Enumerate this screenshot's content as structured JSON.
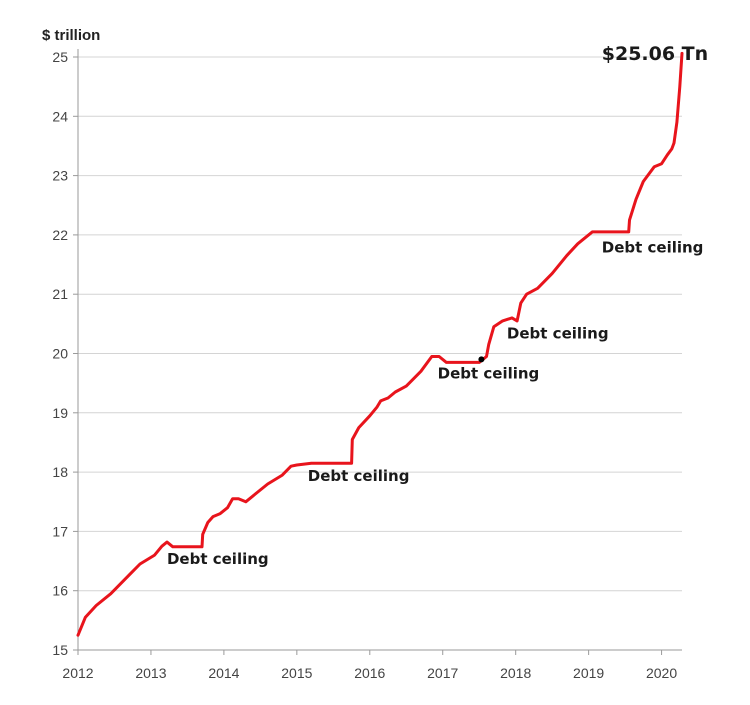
{
  "chart_data": {
    "type": "line",
    "title": "",
    "ylabel": "$ trillion",
    "xlabel": "",
    "xlim": [
      2012.0,
      2020.28
    ],
    "ylim": [
      15,
      25
    ],
    "yticks": [
      15,
      16,
      17,
      18,
      19,
      20,
      21,
      22,
      23,
      24,
      25
    ],
    "xticks": [
      2012,
      2013,
      2014,
      2015,
      2016,
      2017,
      2018,
      2019,
      2020
    ],
    "grid": "horizontal",
    "line_color": "#e8141c",
    "series": [
      {
        "x": [
          2012.0,
          2012.1,
          2012.25,
          2012.45,
          2012.65,
          2012.85,
          2013.05,
          2013.15,
          2013.22,
          2013.3,
          2013.5,
          2013.7,
          2013.71,
          2013.78,
          2013.85,
          2013.95,
          2014.05,
          2014.12,
          2014.2,
          2014.3,
          2014.45,
          2014.6,
          2014.8,
          2014.92,
          2015.0,
          2015.2,
          2015.5,
          2015.75,
          2015.76,
          2015.85,
          2016.0,
          2016.1,
          2016.15,
          2016.25,
          2016.35,
          2016.5,
          2016.7,
          2016.85,
          2016.95,
          2017.05,
          2017.2,
          2017.5,
          2017.6,
          2017.63,
          2017.7,
          2017.82,
          2017.95,
          2018.02,
          2018.07,
          2018.15,
          2018.3,
          2018.5,
          2018.7,
          2018.85,
          2019.05,
          2019.2,
          2019.4,
          2019.55,
          2019.56,
          2019.65,
          2019.75,
          2019.9,
          2020.0,
          2020.08,
          2020.14,
          2020.17,
          2020.21,
          2020.25,
          2020.28
        ],
        "y": [
          15.25,
          15.55,
          15.75,
          15.95,
          16.2,
          16.45,
          16.6,
          16.75,
          16.82,
          16.74,
          16.74,
          16.74,
          16.95,
          17.15,
          17.25,
          17.3,
          17.4,
          17.55,
          17.55,
          17.5,
          17.65,
          17.8,
          17.95,
          18.1,
          18.12,
          18.15,
          18.15,
          18.15,
          18.55,
          18.75,
          18.95,
          19.1,
          19.2,
          19.25,
          19.35,
          19.45,
          19.7,
          19.95,
          19.95,
          19.85,
          19.85,
          19.85,
          19.95,
          20.15,
          20.45,
          20.55,
          20.6,
          20.55,
          20.85,
          21.0,
          21.1,
          21.35,
          21.65,
          21.85,
          22.05,
          22.05,
          22.05,
          22.05,
          22.25,
          22.6,
          22.9,
          23.15,
          23.2,
          23.35,
          23.45,
          23.55,
          23.9,
          24.5,
          25.06
        ]
      }
    ],
    "annotations": [
      {
        "text": "Debt ceiling",
        "x": 2013.22,
        "y": 16.45
      },
      {
        "text": "Debt ceiling",
        "x": 2015.15,
        "y": 17.85
      },
      {
        "text": "Debt ceiling",
        "x": 2016.93,
        "y": 19.58
      },
      {
        "text": "Debt ceiling",
        "x": 2017.88,
        "y": 20.25
      },
      {
        "text": "Debt ceiling",
        "x": 2019.18,
        "y": 21.7
      }
    ],
    "callout": {
      "text": "$25.06 Tn",
      "x": 2019.18,
      "y": 24.95
    },
    "marker": {
      "x": 2017.53,
      "y": 19.9
    }
  }
}
